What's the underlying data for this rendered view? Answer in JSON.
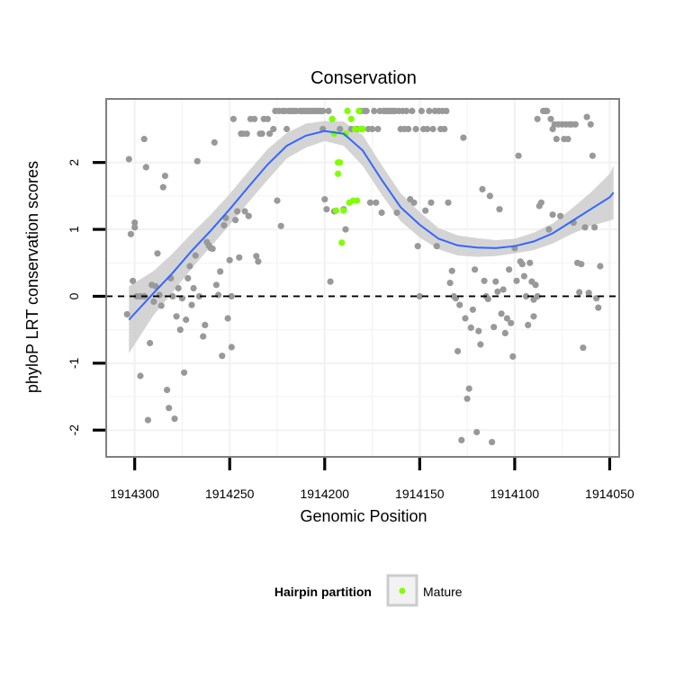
{
  "chart_data": {
    "type": "scatter",
    "title": "Conservation",
    "xlabel": "Genomic Position",
    "ylabel": "phyloP LRT conservation scores",
    "xlim": [
      1914315,
      1914045
    ],
    "ylim": [
      -2.4,
      2.95
    ],
    "x_reversed": true,
    "x_ticks": [
      1914300,
      1914250,
      1914200,
      1914150,
      1914100,
      1914050
    ],
    "x_tick_labels": [
      "1914300",
      "1914250",
      "1914200",
      "1914150",
      "1914100",
      "1914050"
    ],
    "y_ticks": [
      -2,
      -1,
      0,
      1,
      2
    ],
    "y_tick_labels": [
      "-2",
      "-1",
      "0",
      "1",
      "2"
    ],
    "grid": true,
    "reference_line": {
      "y": 0,
      "style": "dashed",
      "color": "#000000"
    },
    "legend": {
      "title": "Hairpin partition",
      "position": "bottom",
      "entries": [
        {
          "label": "Mature",
          "color": "#7fff00"
        }
      ]
    },
    "colors": {
      "points": "#999999",
      "mature": "#7fff00",
      "smooth_line": "#3366ff",
      "confidence_band": "#cccccc",
      "panel_border": "#7f7f7f",
      "gridline": "#f2f2f2"
    },
    "smooth": {
      "x": [
        1914303,
        1914290,
        1914280,
        1914270,
        1914260,
        1914250,
        1914240,
        1914230,
        1914220,
        1914210,
        1914200,
        1914190,
        1914180,
        1914170,
        1914160,
        1914150,
        1914140,
        1914130,
        1914120,
        1914110,
        1914100,
        1914090,
        1914080,
        1914070,
        1914060,
        1914050,
        1914048
      ],
      "y": [
        -0.35,
        0.05,
        0.35,
        0.68,
        0.98,
        1.3,
        1.64,
        1.97,
        2.25,
        2.4,
        2.47,
        2.43,
        2.18,
        1.74,
        1.33,
        1.07,
        0.86,
        0.76,
        0.73,
        0.72,
        0.75,
        0.82,
        0.94,
        1.12,
        1.3,
        1.48,
        1.55
      ],
      "lower": [
        -0.85,
        -0.28,
        0.06,
        0.42,
        0.74,
        1.07,
        1.41,
        1.74,
        2.06,
        2.22,
        2.32,
        2.25,
        1.95,
        1.52,
        1.12,
        0.88,
        0.7,
        0.61,
        0.59,
        0.6,
        0.64,
        0.69,
        0.79,
        0.93,
        1.05,
        1.13,
        1.15
      ],
      "upper": [
        0.15,
        0.38,
        0.64,
        0.94,
        1.22,
        1.53,
        1.87,
        2.2,
        2.44,
        2.58,
        2.62,
        2.61,
        2.41,
        1.96,
        1.54,
        1.26,
        1.02,
        0.91,
        0.87,
        0.84,
        0.86,
        0.95,
        1.09,
        1.31,
        1.55,
        1.83,
        1.95
      ]
    },
    "series": [
      {
        "name": "",
        "color": "#999999",
        "points": [
          [
            1914304,
            -0.27
          ],
          [
            1914303,
            2.05
          ],
          [
            1914302,
            0.93
          ],
          [
            1914301,
            0.23
          ],
          [
            1914300,
            1.1
          ],
          [
            1914300,
            1.03
          ],
          [
            1914299,
            0.0
          ],
          [
            1914297,
            0.0
          ],
          [
            1914297,
            -1.19
          ],
          [
            1914295,
            2.35
          ],
          [
            1914295,
            0.0
          ],
          [
            1914294,
            1.93
          ],
          [
            1914293,
            -1.85
          ],
          [
            1914292,
            -0.7
          ],
          [
            1914291,
            0.17
          ],
          [
            1914290,
            -0.08
          ],
          [
            1914289,
            0.15
          ],
          [
            1914288,
            0.64
          ],
          [
            1914287,
            0.02
          ],
          [
            1914286,
            -0.14
          ],
          [
            1914285,
            1.63
          ],
          [
            1914284,
            1.8
          ],
          [
            1914283,
            -1.4
          ],
          [
            1914282,
            -1.67
          ],
          [
            1914281,
            0.27
          ],
          [
            1914280,
            0.0
          ],
          [
            1914279,
            -1.83
          ],
          [
            1914278,
            -0.3
          ],
          [
            1914277,
            0.12
          ],
          [
            1914276,
            -0.5
          ],
          [
            1914275,
            -0.03
          ],
          [
            1914274,
            -1.14
          ],
          [
            1914273,
            -0.35
          ],
          [
            1914272,
            0.27
          ],
          [
            1914271,
            0.45
          ],
          [
            1914270,
            -0.13
          ],
          [
            1914269,
            0.12
          ],
          [
            1914268,
            0.61
          ],
          [
            1914267,
            2.02
          ],
          [
            1914266,
            0.0
          ],
          [
            1914264,
            -0.6
          ],
          [
            1914263,
            -0.43
          ],
          [
            1914262,
            0.81
          ],
          [
            1914261,
            0.76
          ],
          [
            1914260,
            0.72
          ],
          [
            1914259,
            0.71
          ],
          [
            1914258,
            2.3
          ],
          [
            1914257,
            0.17
          ],
          [
            1914256,
            0.02
          ],
          [
            1914255,
            0.37
          ],
          [
            1914254,
            -0.89
          ],
          [
            1914253,
            1.06
          ],
          [
            1914252,
            1.17
          ],
          [
            1914251,
            -0.33
          ],
          [
            1914250,
            0.54
          ],
          [
            1914249,
            -0.76
          ],
          [
            1914249,
            0.0
          ],
          [
            1914248,
            2.65
          ],
          [
            1914247,
            1.14
          ],
          [
            1914246,
            1.27
          ],
          [
            1914245,
            0.58
          ],
          [
            1914244,
            2.43
          ],
          [
            1914243,
            2.43
          ],
          [
            1914242,
            1.27
          ],
          [
            1914241,
            2.43
          ],
          [
            1914240,
            1.2
          ],
          [
            1914239,
            2.65
          ],
          [
            1914237,
            2.65
          ],
          [
            1914236,
            0.6
          ],
          [
            1914235,
            0.52
          ],
          [
            1914234,
            2.43
          ],
          [
            1914233,
            2.43
          ],
          [
            1914232,
            2.65
          ],
          [
            1914230,
            2.65
          ],
          [
            1914229,
            2.43
          ],
          [
            1914227,
            2.5
          ],
          [
            1914226,
            2.77
          ],
          [
            1914225,
            1.43
          ],
          [
            1914224,
            2.77
          ],
          [
            1914223,
            1.05
          ],
          [
            1914222,
            2.77
          ],
          [
            1914221,
            2.77
          ],
          [
            1914220,
            2.5
          ],
          [
            1914219,
            2.77
          ],
          [
            1914218,
            2.77
          ],
          [
            1914217,
            2.77
          ],
          [
            1914216,
            2.77
          ],
          [
            1914215,
            2.77
          ],
          [
            1914213,
            2.77
          ],
          [
            1914212,
            2.77
          ],
          [
            1914211,
            2.77
          ],
          [
            1914210,
            2.77
          ],
          [
            1914209,
            2.77
          ],
          [
            1914208,
            2.77
          ],
          [
            1914207,
            2.77
          ],
          [
            1914206,
            2.77
          ],
          [
            1914205,
            2.77
          ],
          [
            1914204,
            2.77
          ],
          [
            1914203,
            2.77
          ],
          [
            1914202,
            2.77
          ],
          [
            1914201,
            2.5
          ],
          [
            1914201,
            2.77
          ],
          [
            1914200,
            1.45
          ],
          [
            1914199,
            1.3
          ],
          [
            1914198,
            2.77
          ],
          [
            1914197,
            0.22
          ],
          [
            1914196,
            2.65
          ],
          [
            1914195,
            1.27
          ],
          [
            1914192,
            2.5
          ],
          [
            1914190,
            1.3
          ],
          [
            1914189,
            1.0
          ],
          [
            1914186,
            2.5
          ],
          [
            1914183,
            2.5
          ],
          [
            1914181,
            2.77
          ],
          [
            1914180,
            2.5
          ],
          [
            1914179,
            2.77
          ],
          [
            1914178,
            2.77
          ],
          [
            1914177,
            2.5
          ],
          [
            1914176,
            1.4
          ],
          [
            1914175,
            2.5
          ],
          [
            1914174,
            2.77
          ],
          [
            1914173,
            1.4
          ],
          [
            1914172,
            2.5
          ],
          [
            1914171,
            2.77
          ],
          [
            1914170,
            1.25
          ],
          [
            1914169,
            2.77
          ],
          [
            1914168,
            2.77
          ],
          [
            1914167,
            2.77
          ],
          [
            1914166,
            2.77
          ],
          [
            1914165,
            2.77
          ],
          [
            1914164,
            2.77
          ],
          [
            1914163,
            2.77
          ],
          [
            1914162,
            1.25
          ],
          [
            1914161,
            2.77
          ],
          [
            1914160,
            2.5
          ],
          [
            1914159,
            2.77
          ],
          [
            1914158,
            2.5
          ],
          [
            1914157,
            2.77
          ],
          [
            1914156,
            2.5
          ],
          [
            1914155,
            1.45
          ],
          [
            1914154,
            2.77
          ],
          [
            1914153,
            1.4
          ],
          [
            1914152,
            2.5
          ],
          [
            1914151,
            0.75
          ],
          [
            1914150,
            0.0
          ],
          [
            1914149,
            2.77
          ],
          [
            1914148,
            2.5
          ],
          [
            1914147,
            1.28
          ],
          [
            1914146,
            2.5
          ],
          [
            1914145,
            2.77
          ],
          [
            1914144,
            1.4
          ],
          [
            1914143,
            2.5
          ],
          [
            1914142,
            2.77
          ],
          [
            1914141,
            0.75
          ],
          [
            1914140,
            2.77
          ],
          [
            1914139,
            2.5
          ],
          [
            1914138,
            2.77
          ],
          [
            1914137,
            2.5
          ],
          [
            1914136,
            2.77
          ],
          [
            1914135,
            1.4
          ],
          [
            1914134,
            0.2
          ],
          [
            1914133,
            0.38
          ],
          [
            1914132,
            0.0
          ],
          [
            1914131,
            -0.03
          ],
          [
            1914130,
            -0.82
          ],
          [
            1914129,
            -0.13
          ],
          [
            1914128,
            -2.15
          ],
          [
            1914127,
            2.37
          ],
          [
            1914126,
            -0.33
          ],
          [
            1914125,
            -1.53
          ],
          [
            1914124,
            -1.38
          ],
          [
            1914123,
            -0.47
          ],
          [
            1914122,
            -0.2
          ],
          [
            1914121,
            0.4
          ],
          [
            1914120,
            -2.03
          ],
          [
            1914119,
            -0.52
          ],
          [
            1914118,
            -0.72
          ],
          [
            1914117,
            1.6
          ],
          [
            1914116,
            0.23
          ],
          [
            1914115,
            0.0
          ],
          [
            1914114,
            -0.04
          ],
          [
            1914113,
            1.5
          ],
          [
            1914112,
            -2.18
          ],
          [
            1914111,
            -0.46
          ],
          [
            1914110,
            0.22
          ],
          [
            1914109,
            0.07
          ],
          [
            1914108,
            1.3
          ],
          [
            1914107,
            -0.26
          ],
          [
            1914106,
            0.1
          ],
          [
            1914105,
            -0.55
          ],
          [
            1914104,
            -0.33
          ],
          [
            1914103,
            0.4
          ],
          [
            1914102,
            -0.4
          ],
          [
            1914101,
            -0.9
          ],
          [
            1914100,
            0.72
          ],
          [
            1914099,
            0.23
          ],
          [
            1914098,
            2.1
          ],
          [
            1914097,
            0.52
          ],
          [
            1914096,
            0.48
          ],
          [
            1914095,
            0.3
          ],
          [
            1914094,
            0.0
          ],
          [
            1914093,
            -0.43
          ],
          [
            1914092,
            0.5
          ],
          [
            1914091,
            0.22
          ],
          [
            1914090,
            -0.3
          ],
          [
            1914090,
            -0.05
          ],
          [
            1914089,
            0.17
          ],
          [
            1914088,
            0.0
          ],
          [
            1914088,
            2.65
          ],
          [
            1914087,
            1.35
          ],
          [
            1914086,
            1.4
          ],
          [
            1914085,
            2.77
          ],
          [
            1914084,
            2.77
          ],
          [
            1914083,
            2.77
          ],
          [
            1914082,
            1.0
          ],
          [
            1914081,
            2.65
          ],
          [
            1914080,
            2.5
          ],
          [
            1914080,
            1.22
          ],
          [
            1914079,
            2.57
          ],
          [
            1914078,
            2.35
          ],
          [
            1914077,
            2.57
          ],
          [
            1914076,
            1.2
          ],
          [
            1914075,
            2.57
          ],
          [
            1914074,
            2.35
          ],
          [
            1914073,
            2.57
          ],
          [
            1914072,
            2.35
          ],
          [
            1914071,
            2.57
          ],
          [
            1914070,
            2.57
          ],
          [
            1914069,
            1.1
          ],
          [
            1914068,
            2.57
          ],
          [
            1914067,
            0.5
          ],
          [
            1914066,
            0.06
          ],
          [
            1914065,
            0.48
          ],
          [
            1914064,
            -0.77
          ],
          [
            1914063,
            1.03
          ],
          [
            1914062,
            2.68
          ],
          [
            1914061,
            0.05
          ],
          [
            1914060,
            2.57
          ],
          [
            1914059,
            2.1
          ],
          [
            1914058,
            1.03
          ],
          [
            1914057,
            -0.03
          ],
          [
            1914056,
            -0.17
          ],
          [
            1914055,
            0.45
          ]
        ]
      },
      {
        "name": "Mature",
        "color": "#7fff00",
        "points": [
          [
            1914196,
            2.65
          ],
          [
            1914195,
            2.43
          ],
          [
            1914194,
            1.28
          ],
          [
            1914193,
            2.0
          ],
          [
            1914193,
            1.83
          ],
          [
            1914192,
            2.0
          ],
          [
            1914191,
            0.8
          ],
          [
            1914190,
            1.28
          ],
          [
            1914189,
            2.43
          ],
          [
            1914188,
            2.77
          ],
          [
            1914187,
            1.4
          ],
          [
            1914186,
            2.65
          ],
          [
            1914185,
            1.43
          ],
          [
            1914184,
            2.5
          ],
          [
            1914183,
            1.43
          ],
          [
            1914182,
            2.77
          ],
          [
            1914181,
            2.5
          ],
          [
            1914180,
            2.5
          ]
        ]
      }
    ]
  }
}
